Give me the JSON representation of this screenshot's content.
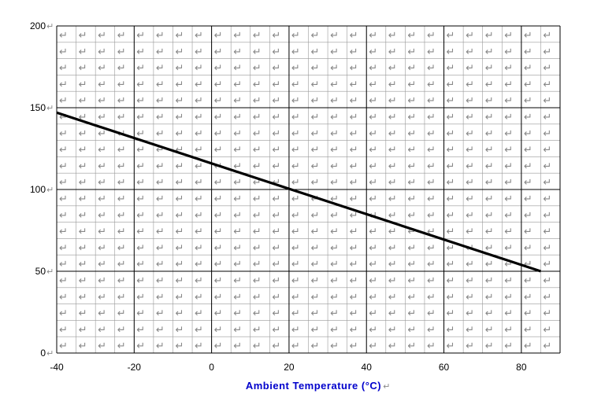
{
  "chart_data": {
    "type": "line",
    "title": "",
    "xlabel": "Ambient Temperature (°C)",
    "ylabel": "",
    "xlim": [
      -40,
      90
    ],
    "ylim": [
      0,
      200
    ],
    "x_ticks": [
      -40,
      -20,
      0,
      20,
      40,
      60,
      80
    ],
    "y_ticks": [
      0,
      50,
      100,
      150,
      200
    ],
    "x_minor_step": 5,
    "y_minor_step": 10,
    "grid": true,
    "cell_marker": "↵",
    "series": [
      {
        "x": [
          -40,
          85
        ],
        "y": [
          147,
          50
        ],
        "color": "#000000"
      }
    ]
  },
  "colors": {
    "xlabel": "#0000cc",
    "major_grid": "#000000",
    "minor_grid": "#999999",
    "cell_marker": "#888888"
  }
}
